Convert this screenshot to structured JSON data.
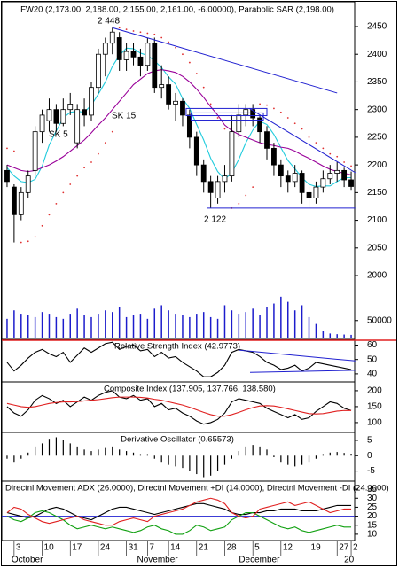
{
  "chart_data": [
    {
      "type": "candlestick",
      "title": "FW20 (2,173.00, 2,188.00, 2,155.00, 2,161.00, -6.00000), Parabolic SAR (2,198.00)",
      "categories": [
        null,
        "3",
        null,
        null,
        null,
        "10",
        null,
        null,
        null,
        "17",
        null,
        null,
        null,
        "24",
        null,
        null,
        null,
        "31",
        null,
        null,
        "7",
        null,
        null,
        "14",
        null,
        null,
        null,
        "21",
        null,
        null,
        null,
        "28",
        null,
        null,
        null,
        "5",
        null,
        null,
        null,
        "12",
        null,
        null,
        null,
        "19",
        null,
        null,
        null,
        "27",
        null,
        "2"
      ],
      "months": [
        "October",
        "November",
        "December",
        "20"
      ],
      "ylim": [
        1920,
        2490
      ],
      "yticks": [
        2450,
        2400,
        2350,
        2300,
        2250,
        2200,
        2150,
        2100,
        2050,
        2000
      ],
      "up_color": "#ffffff",
      "down_color": "#000000",
      "ohlc": [
        [
          2190,
          2200,
          2160,
          2170
        ],
        [
          2160,
          2165,
          2060,
          2110
        ],
        [
          2110,
          2160,
          2100,
          2150
        ],
        [
          2150,
          2190,
          2140,
          2180
        ],
        [
          2190,
          2270,
          2180,
          2260
        ],
        [
          2260,
          2300,
          2240,
          2290
        ],
        [
          2280,
          2320,
          2260,
          2300
        ],
        [
          2300,
          2310,
          2260,
          2275
        ],
        [
          2275,
          2320,
          2270,
          2300
        ],
        [
          2300,
          2330,
          2290,
          2310
        ],
        [
          2240,
          2310,
          2230,
          2300
        ],
        [
          2300,
          2320,
          2270,
          2290
        ],
        [
          2290,
          2350,
          2280,
          2340
        ],
        [
          2340,
          2410,
          2330,
          2400
        ],
        [
          2400,
          2430,
          2360,
          2420
        ],
        [
          2420,
          2448,
          2400,
          2440
        ],
        [
          2430,
          2440,
          2370,
          2390
        ],
        [
          2390,
          2420,
          2370,
          2405
        ],
        [
          2405,
          2420,
          2380,
          2395
        ],
        [
          2395,
          2410,
          2360,
          2380
        ],
        [
          2380,
          2430,
          2370,
          2420
        ],
        [
          2420,
          2430,
          2330,
          2340
        ],
        [
          2340,
          2380,
          2320,
          2345
        ],
        [
          2345,
          2360,
          2300,
          2310
        ],
        [
          2310,
          2330,
          2280,
          2315
        ],
        [
          2315,
          2320,
          2270,
          2290
        ],
        [
          2290,
          2300,
          2230,
          2250
        ],
        [
          2250,
          2260,
          2180,
          2200
        ],
        [
          2200,
          2210,
          2150,
          2170
        ],
        [
          2170,
          2180,
          2122,
          2150
        ],
        [
          2140,
          2180,
          2130,
          2170
        ],
        [
          2170,
          2200,
          2150,
          2180
        ],
        [
          2180,
          2290,
          2170,
          2260
        ],
        [
          2260,
          2310,
          2250,
          2290
        ],
        [
          2290,
          2310,
          2270,
          2300
        ],
        [
          2300,
          2310,
          2270,
          2285
        ],
        [
          2285,
          2290,
          2240,
          2260
        ],
        [
          2260,
          2270,
          2210,
          2230
        ],
        [
          2230,
          2240,
          2180,
          2200
        ],
        [
          2200,
          2210,
          2160,
          2180
        ],
        [
          2180,
          2190,
          2150,
          2170
        ],
        [
          2170,
          2200,
          2160,
          2185
        ],
        [
          2185,
          2190,
          2130,
          2150
        ],
        [
          2150,
          2160,
          2122,
          2140
        ],
        [
          2140,
          2170,
          2130,
          2160
        ],
        [
          2160,
          2190,
          2150,
          2175
        ],
        [
          2175,
          2200,
          2165,
          2185
        ],
        [
          2185,
          2205,
          2170,
          2190
        ],
        [
          2190,
          2195,
          2160,
          2173
        ],
        [
          2173,
          2188,
          2155,
          2161
        ]
      ],
      "series": [
        {
          "color": "#22ccdd",
          "values": [
            2195,
            2180,
            2170,
            2168,
            2174,
            2198,
            2236,
            2261,
            2285,
            2295,
            2297,
            2295,
            2308,
            2328,
            2350,
            2378,
            2398,
            2411,
            2410,
            2402,
            2398,
            2388,
            2376,
            2359,
            2346,
            2320,
            2302,
            2273,
            2245,
            2212,
            2188,
            2174,
            2186,
            2210,
            2240,
            2263,
            2279,
            2273,
            2255,
            2231,
            2208,
            2193,
            2177,
            2165,
            2161,
            2162,
            2162,
            2170,
            2177,
            2177
          ]
        },
        {
          "color": "#990099",
          "values": [
            2200,
            2195,
            2190,
            2188,
            2190,
            2195,
            2200,
            2207,
            2215,
            2225,
            2235,
            2245,
            2258,
            2272,
            2285,
            2300,
            2315,
            2330,
            2345,
            2355,
            2365,
            2370,
            2372,
            2370,
            2367,
            2360,
            2350,
            2337,
            2322,
            2305,
            2290,
            2272,
            2262,
            2255,
            2250,
            2245,
            2240,
            2237,
            2235,
            2232,
            2230,
            2225,
            2218,
            2212,
            2205,
            2198,
            2192,
            2188,
            2185,
            2182
          ]
        }
      ],
      "sar": {
        "color": "#e03030",
        "values": [
          2230,
          2225,
          2060,
          2062,
          2070,
          2090,
          2110,
          2130,
          2150,
          2165,
          2180,
          2195,
          2205,
          2220,
          2240,
          2260,
          2448,
          2445,
          2442,
          2440,
          2438,
          2436,
          2430,
          2422,
          2412,
          2400,
          2385,
          2365,
          2340,
          2310,
          2285,
          2265,
          2122,
          2130,
          2145,
          2160,
          2310,
          2308,
          2302,
          2295,
          2285,
          2275,
          2265,
          2250,
          2240,
          2230,
          2220,
          2215,
          2205,
          2198
        ]
      },
      "volume": {
        "color": "#1c1ccc",
        "ylim": [
          0,
          130000
        ],
        "yticks": [
          50000
        ],
        "values": [
          55000,
          80000,
          70000,
          65000,
          60000,
          75000,
          70000,
          60000,
          55000,
          70000,
          85000,
          65000,
          60000,
          70000,
          80000,
          75000,
          90000,
          60000,
          65000,
          70000,
          55000,
          85000,
          95000,
          80000,
          70000,
          65000,
          60000,
          70000,
          75000,
          60000,
          55000,
          95000,
          80000,
          70000,
          75000,
          85000,
          65000,
          90000,
          100000,
          120000,
          105000,
          80000,
          95000,
          60000,
          40000,
          20000,
          12000,
          10000,
          9000,
          8000
        ]
      },
      "trendline_color": "#2020d0",
      "trendlines": [
        {
          "x": [
            15,
            47
          ],
          "y": [
            2448,
            2330
          ]
        },
        {
          "x": [
            34.5,
            49.6
          ],
          "y": [
            2302,
            2186
          ]
        },
        {
          "x": [
            28.5,
            49.6
          ],
          "y": [
            2122,
            2122
          ]
        }
      ],
      "boxes": [
        {
          "x": [
            25.5,
            37
          ],
          "y": [
            2302,
            2289
          ]
        },
        {
          "x": [
            26.2,
            36.5
          ],
          "y": [
            2294,
            2281
          ]
        }
      ],
      "annotations": [
        {
          "text": "2 448",
          "color": "#1c1ccc"
        },
        {
          "text": "2 122",
          "color": "#1c1ccc"
        },
        {
          "text": "SK 5",
          "color": "#22ccdd"
        },
        {
          "text": "SK 15",
          "color": "#990099"
        }
      ]
    },
    {
      "type": "line",
      "title": "Relative Strength Index (42.9773)",
      "ylim": [
        35,
        64
      ],
      "yticks": [
        60,
        50,
        40
      ],
      "series": [
        {
          "color": "#000000",
          "values": [
            48,
            42,
            46,
            51,
            55,
            57,
            54,
            52,
            55,
            48,
            53,
            58,
            55,
            58,
            61,
            62,
            57,
            59,
            60,
            56,
            57,
            52,
            55,
            51,
            52,
            48,
            45,
            42,
            38,
            38,
            41,
            46,
            55,
            57,
            56,
            55,
            52,
            48,
            46,
            43,
            44,
            46,
            42,
            44,
            48,
            47,
            46,
            45,
            44,
            42.9773
          ]
        }
      ],
      "trendline_color": "#2020d0",
      "trendlines": [
        {
          "x": [
            33,
            49.6
          ],
          "y": [
            56.5,
            49
          ]
        },
        {
          "x": [
            34.6,
            49.6
          ],
          "y": [
            41,
            42.5
          ]
        }
      ]
    },
    {
      "type": "line",
      "title": "Composite Index (137.905, 137.766, 138.580)",
      "ylim": [
        72,
        222
      ],
      "yticks": [
        200,
        150,
        100
      ],
      "series": [
        {
          "color": "#000000",
          "values": [
            150,
            130,
            120,
            140,
            170,
            185,
            175,
            160,
            170,
            150,
            165,
            180,
            170,
            185,
            195,
            200,
            180,
            175,
            185,
            170,
            175,
            150,
            160,
            140,
            145,
            130,
            120,
            105,
            95,
            100,
            110,
            130,
            165,
            175,
            170,
            165,
            160,
            145,
            135,
            125,
            115,
            125,
            110,
            115,
            135,
            150,
            165,
            160,
            145,
            137.905
          ]
        },
        {
          "color": "#e02020",
          "values": [
            160,
            155,
            150,
            148,
            150,
            155,
            160,
            163,
            165,
            165,
            166,
            168,
            170,
            172,
            175,
            178,
            180,
            180,
            180,
            179,
            177,
            173,
            170,
            165,
            160,
            155,
            148,
            140,
            132,
            125,
            120,
            120,
            125,
            132,
            140,
            147,
            152,
            153,
            152,
            148,
            143,
            138,
            133,
            128,
            127,
            128,
            132,
            136,
            138,
            137.766
          ]
        }
      ]
    },
    {
      "type": "bar",
      "title": "Derivative Oscillator (0.65573)",
      "ylim": [
        -8,
        7
      ],
      "yticks": [
        5,
        0,
        -5
      ],
      "color": "#000000",
      "values": [
        -1,
        -2,
        -1,
        1,
        3,
        4,
        5.5,
        6,
        5,
        4,
        3,
        2,
        1.5,
        2,
        2.5,
        3,
        2,
        1.5,
        1,
        0.5,
        0.5,
        -1,
        -2,
        -3,
        -3.5,
        -4,
        -5,
        -6,
        -7,
        -6.5,
        -5,
        -3,
        -1,
        1.5,
        3,
        3.5,
        3,
        2,
        -0.5,
        -2,
        -3,
        -3.5,
        -3,
        -2,
        -1,
        0.5,
        1,
        1.2,
        0.9,
        0.65573
      ]
    },
    {
      "type": "line",
      "title": "Directnl Movement ADX (26.0000), Directnl Movement +DI (14.0000), Directnl Movement -DI (24.0000)",
      "ylim": [
        6.5,
        38.5
      ],
      "yticks": [
        35,
        30,
        25,
        20,
        15,
        10
      ],
      "reference": {
        "value": 20,
        "color": "#2020d0"
      },
      "series": [
        {
          "color": "#000000",
          "values": [
            22,
            21,
            20,
            19,
            20,
            22,
            24,
            25,
            24,
            22,
            20,
            19,
            18,
            20,
            22,
            24,
            25,
            25,
            24,
            23,
            22,
            21,
            22,
            23,
            24,
            25,
            26,
            27,
            27,
            26,
            25,
            24,
            22,
            21,
            21,
            22,
            22,
            23,
            23,
            24,
            24,
            24,
            23,
            23,
            23,
            24,
            25,
            26,
            26,
            26
          ]
        },
        {
          "color": "#10a010",
          "values": [
            20,
            18,
            17,
            19,
            22,
            23,
            22,
            20,
            18,
            15,
            13,
            14,
            15,
            14,
            13,
            14,
            13,
            12,
            11,
            12,
            14,
            15,
            13,
            12,
            10,
            10,
            12,
            15,
            14,
            12,
            13,
            14,
            18,
            20,
            22,
            22,
            20,
            18,
            16,
            14,
            13,
            14,
            12,
            11,
            12,
            13,
            14,
            15,
            14,
            14
          ]
        },
        {
          "color": "#e02020",
          "values": [
            22,
            25,
            24,
            21,
            19,
            17,
            16,
            17,
            18,
            19,
            20,
            18,
            17,
            16,
            15,
            15,
            17,
            18,
            19,
            18,
            17,
            20,
            21,
            22,
            23,
            24,
            26,
            28,
            29,
            30,
            29,
            27,
            22,
            20,
            19,
            20,
            24,
            25,
            26,
            27,
            28,
            26,
            27,
            28,
            26,
            24,
            22,
            23,
            24,
            24
          ]
        }
      ]
    }
  ]
}
